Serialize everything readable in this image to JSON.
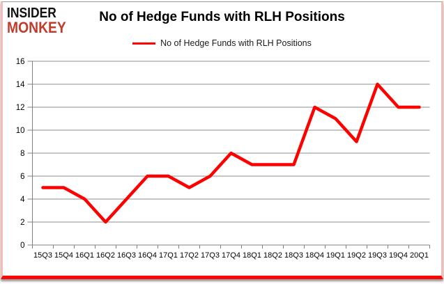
{
  "logo": {
    "line1": "INSIDER",
    "line2": "MONKEY",
    "color2": "#c23b2c"
  },
  "header": {
    "title": "No of Hedge Funds with RLH Positions"
  },
  "legend": {
    "label": "No of Hedge Funds with RLH Positions",
    "color": "#ff0000",
    "position": "top"
  },
  "colors": {
    "series_red": "#ff0000",
    "gridline": "#8c8c8c",
    "axis": "#7f7f7f",
    "tick_label": "#000000",
    "frame_side_pink": "#f3bdb7",
    "frame_bottom_red": "#fb0703"
  },
  "chart_data": {
    "type": "line",
    "title": "No of Hedge Funds with RLH Positions",
    "series_name": "No of Hedge Funds with RLH Positions",
    "categories": [
      "15Q3",
      "15Q4",
      "16Q1",
      "16Q2",
      "16Q3",
      "16Q4",
      "17Q1",
      "17Q2",
      "17Q3",
      "17Q4",
      "18Q1",
      "18Q2",
      "18Q3",
      "18Q4",
      "19Q1",
      "19Q2",
      "19Q3",
      "19Q4",
      "20Q1"
    ],
    "values": [
      5,
      5,
      4,
      2,
      4,
      6,
      6,
      5,
      6,
      8,
      7,
      7,
      7,
      12,
      11,
      9,
      14,
      12,
      12
    ],
    "xlabel": "",
    "ylabel": "",
    "ylim": [
      0,
      16
    ],
    "ytick_step": 2,
    "yticks": [
      0,
      2,
      4,
      6,
      8,
      10,
      12,
      14,
      16
    ],
    "grid": true,
    "line_color": "#ff0000",
    "line_width": 4.5,
    "legend_position": "top"
  }
}
